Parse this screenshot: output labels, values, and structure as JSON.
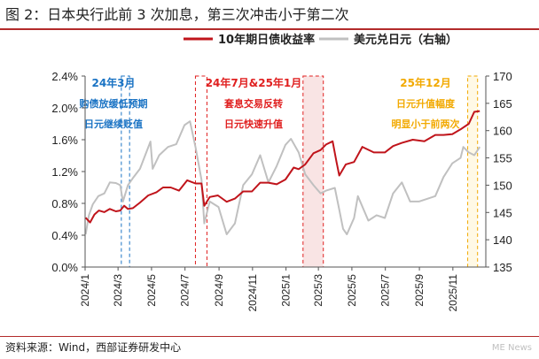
{
  "title": "图 2：日本央行此前 3 次加息，第三次冲击小于第二次",
  "source": "资料来源：Wind，西部证券研发中心",
  "watermark": "ME News",
  "chart_data": {
    "type": "line",
    "x_ticks": [
      "2024/1",
      "2024/3",
      "2024/5",
      "2024/7",
      "2024/9",
      "2024/11",
      "2025/1",
      "2025/3",
      "2025/5",
      "2025/7",
      "2025/9",
      "2025/11"
    ],
    "x_range": [
      "2024-01-01",
      "2025-12-31"
    ],
    "y_left": {
      "range": [
        0,
        2.4
      ],
      "ticks": [
        "0.0%",
        "0.4%",
        "0.8%",
        "1.2%",
        "1.6%",
        "2.0%",
        "2.4%"
      ]
    },
    "y_right": {
      "range": [
        135,
        170
      ],
      "ticks": [
        "135",
        "140",
        "145",
        "150",
        "155",
        "160",
        "165",
        "170"
      ]
    },
    "grid": false,
    "legend": {
      "position": "top"
    },
    "series": [
      {
        "name": "10年期日债收益率",
        "axis": "left",
        "color": "#c0141b",
        "points": [
          [
            "2024-01-02",
            0.62
          ],
          [
            "2024-01-10",
            0.56
          ],
          [
            "2024-01-18",
            0.66
          ],
          [
            "2024-01-26",
            0.71
          ],
          [
            "2024-02-05",
            0.69
          ],
          [
            "2024-02-15",
            0.73
          ],
          [
            "2024-02-26",
            0.7
          ],
          [
            "2024-03-05",
            0.71
          ],
          [
            "2024-03-12",
            0.77
          ],
          [
            "2024-03-19",
            0.73
          ],
          [
            "2024-03-28",
            0.74
          ],
          [
            "2024-04-10",
            0.81
          ],
          [
            "2024-04-25",
            0.9
          ],
          [
            "2024-05-10",
            0.94
          ],
          [
            "2024-05-22",
            1.0
          ],
          [
            "2024-06-05",
            1.0
          ],
          [
            "2024-06-20",
            0.96
          ],
          [
            "2024-07-05",
            1.09
          ],
          [
            "2024-07-20",
            1.05
          ],
          [
            "2024-07-31",
            1.05
          ],
          [
            "2024-08-05",
            0.77
          ],
          [
            "2024-08-15",
            0.88
          ],
          [
            "2024-08-30",
            0.9
          ],
          [
            "2024-09-15",
            0.82
          ],
          [
            "2024-09-30",
            0.86
          ],
          [
            "2024-10-15",
            0.95
          ],
          [
            "2024-10-31",
            0.95
          ],
          [
            "2024-11-15",
            1.06
          ],
          [
            "2024-11-30",
            1.06
          ],
          [
            "2024-12-15",
            1.04
          ],
          [
            "2024-12-31",
            1.1
          ],
          [
            "2025-01-15",
            1.25
          ],
          [
            "2025-01-24",
            1.23
          ],
          [
            "2025-02-05",
            1.29
          ],
          [
            "2025-02-20",
            1.43
          ],
          [
            "2025-03-05",
            1.47
          ],
          [
            "2025-03-15",
            1.54
          ],
          [
            "2025-03-27",
            1.58
          ],
          [
            "2025-04-03",
            1.32
          ],
          [
            "2025-04-08",
            1.15
          ],
          [
            "2025-04-20",
            1.29
          ],
          [
            "2025-05-05",
            1.32
          ],
          [
            "2025-05-20",
            1.51
          ],
          [
            "2025-06-10",
            1.44
          ],
          [
            "2025-06-30",
            1.44
          ],
          [
            "2025-07-15",
            1.52
          ],
          [
            "2025-07-31",
            1.56
          ],
          [
            "2025-08-20",
            1.6
          ],
          [
            "2025-09-10",
            1.58
          ],
          [
            "2025-09-30",
            1.66
          ],
          [
            "2025-10-15",
            1.66
          ],
          [
            "2025-10-31",
            1.67
          ],
          [
            "2025-11-15",
            1.73
          ],
          [
            "2025-11-30",
            1.8
          ],
          [
            "2025-12-10",
            1.95
          ],
          [
            "2025-12-20",
            1.96
          ]
        ]
      },
      {
        "name": "美元兑日元（右轴）",
        "axis": "right",
        "color": "#c0c0c0",
        "points": [
          [
            "2024-01-02",
            141
          ],
          [
            "2024-01-08",
            144.5
          ],
          [
            "2024-01-15",
            146.5
          ],
          [
            "2024-01-25",
            148
          ],
          [
            "2024-02-05",
            148.5
          ],
          [
            "2024-02-15",
            150.5
          ],
          [
            "2024-02-26",
            150.4
          ],
          [
            "2024-03-05",
            150
          ],
          [
            "2024-03-10",
            147
          ],
          [
            "2024-03-19",
            150
          ],
          [
            "2024-03-28",
            151.3
          ],
          [
            "2024-04-10",
            153
          ],
          [
            "2024-04-29",
            158
          ],
          [
            "2024-05-03",
            153
          ],
          [
            "2024-05-15",
            155.5
          ],
          [
            "2024-05-31",
            157
          ],
          [
            "2024-06-15",
            157.5
          ],
          [
            "2024-06-30",
            161
          ],
          [
            "2024-07-10",
            161.7
          ],
          [
            "2024-07-20",
            157
          ],
          [
            "2024-07-31",
            151
          ],
          [
            "2024-08-05",
            143
          ],
          [
            "2024-08-15",
            147
          ],
          [
            "2024-08-31",
            146
          ],
          [
            "2024-09-15",
            141
          ],
          [
            "2024-09-30",
            143
          ],
          [
            "2024-10-15",
            150
          ],
          [
            "2024-10-31",
            152
          ],
          [
            "2024-11-15",
            155.5
          ],
          [
            "2024-11-30",
            150.5
          ],
          [
            "2024-12-15",
            153.5
          ],
          [
            "2024-12-31",
            157.4
          ],
          [
            "2025-01-10",
            158.5
          ],
          [
            "2025-01-24",
            156
          ],
          [
            "2025-02-05",
            152
          ],
          [
            "2025-02-20",
            150
          ],
          [
            "2025-03-05",
            148.5
          ],
          [
            "2025-03-15",
            149
          ],
          [
            "2025-03-31",
            149.5
          ],
          [
            "2025-04-08",
            145.5
          ],
          [
            "2025-04-15",
            142
          ],
          [
            "2025-04-22",
            141
          ],
          [
            "2025-05-05",
            144
          ],
          [
            "2025-05-12",
            148
          ],
          [
            "2025-05-31",
            143.5
          ],
          [
            "2025-06-15",
            144.5
          ],
          [
            "2025-06-30",
            144
          ],
          [
            "2025-07-15",
            148.5
          ],
          [
            "2025-07-31",
            150.5
          ],
          [
            "2025-08-15",
            147
          ],
          [
            "2025-08-31",
            147
          ],
          [
            "2025-09-15",
            147.5
          ],
          [
            "2025-09-30",
            148
          ],
          [
            "2025-10-15",
            151.5
          ],
          [
            "2025-10-31",
            154
          ],
          [
            "2025-11-15",
            155
          ],
          [
            "2025-11-20",
            157
          ],
          [
            "2025-11-30",
            156
          ],
          [
            "2025-12-10",
            155.5
          ],
          [
            "2025-12-20",
            157
          ]
        ]
      }
    ],
    "annotations": [
      {
        "label_lines": [
          "24年3月",
          "购债放缓低预期",
          "日元继续贬值"
        ],
        "color": "#1a73c4",
        "fill": "#ffffff",
        "x_start": "2024-03-07",
        "x_end": "2024-03-22"
      },
      {
        "label_lines": [
          "24年7月&25年1月",
          "套息交易反转",
          "日元快速升值"
        ],
        "color": "#e02020",
        "fill": "#ffffff",
        "x_start": "2024-07-20",
        "x_end": "2024-08-10"
      },
      {
        "label_lines": [],
        "color": "#e02020",
        "fill": "#f9e4e4",
        "x_start": "2025-02-01",
        "x_end": "2025-03-10"
      },
      {
        "label_lines": [
          "25年12月",
          "日元升值幅度",
          "明显小于前两次"
        ],
        "color": "#f2a900",
        "fill": "#fff9e6",
        "x_start": "2025-11-28",
        "x_end": "2025-12-16"
      }
    ]
  }
}
